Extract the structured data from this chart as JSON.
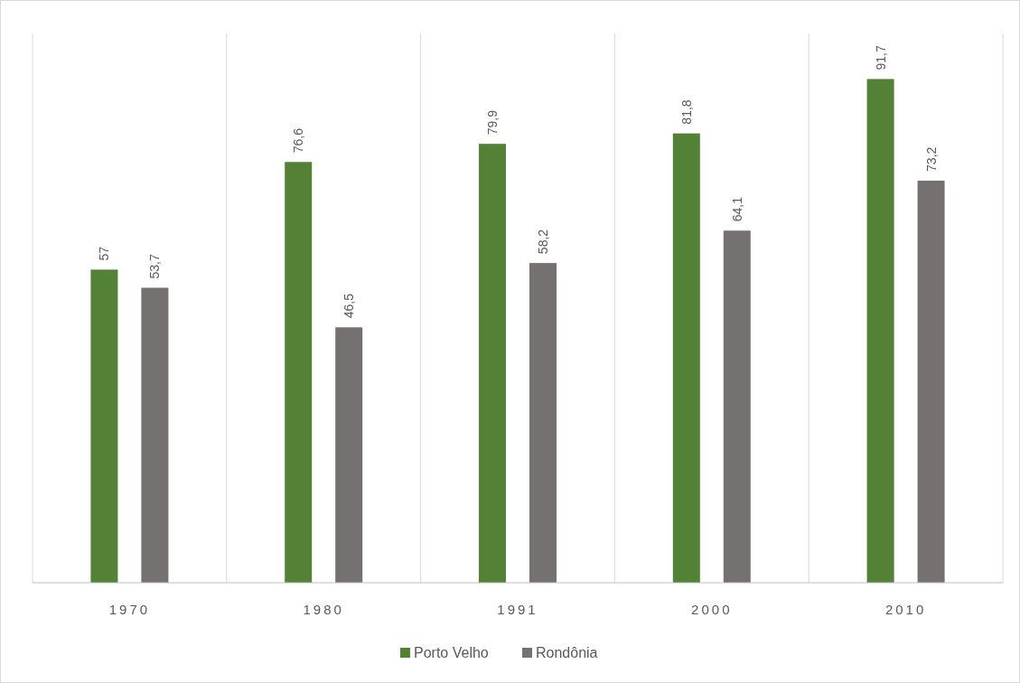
{
  "chart_data": {
    "type": "bar",
    "categories": [
      "1970",
      "1980",
      "1991",
      "2000",
      "2010"
    ],
    "series": [
      {
        "name": "Porto Velho",
        "color": "#538135",
        "values": [
          57,
          76.6,
          79.9,
          81.8,
          91.7
        ],
        "value_labels": [
          "57",
          "76,6",
          "79,9",
          "81,8",
          "91,7"
        ]
      },
      {
        "name": "Rondônia",
        "color": "#767171",
        "values": [
          53.7,
          46.5,
          58.2,
          64.1,
          73.2
        ],
        "value_labels": [
          "53,7",
          "46,5",
          "58,2",
          "64,1",
          "73,2"
        ]
      }
    ],
    "ylim": [
      0,
      100
    ],
    "tick_labels": "x",
    "grid": "x",
    "legend": "bottom"
  }
}
